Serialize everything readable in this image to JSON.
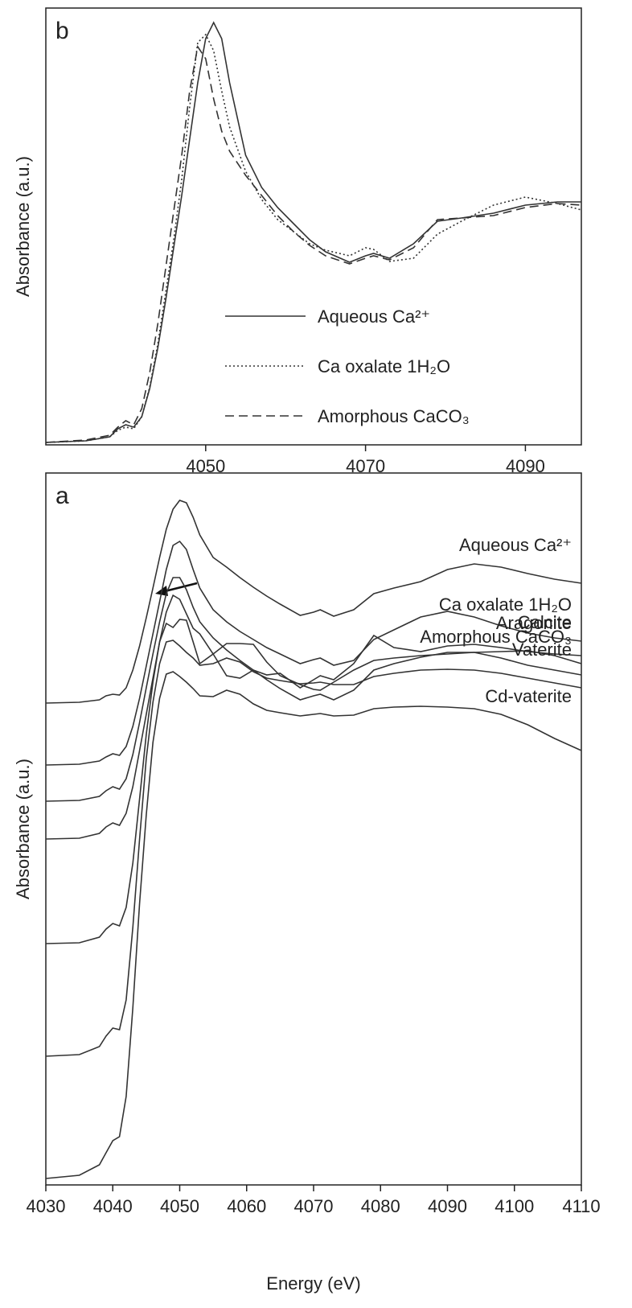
{
  "chart_data": [
    {
      "type": "line",
      "panel_label": "b",
      "ylabel": "Absorbance (a.u.)",
      "x": [
        4030,
        4035,
        4038,
        4039,
        4040,
        4041,
        4042,
        4043,
        4044,
        4045,
        4046,
        4047,
        4048,
        4049,
        4050,
        4051,
        4052,
        4053,
        4055,
        4057,
        4059,
        4061,
        4063,
        4065,
        4068,
        4070,
        4071,
        4073,
        4076,
        4079,
        4082,
        4086,
        4090,
        4094,
        4097
      ],
      "series": [
        {
          "name": "Aqueous Ca²⁺",
          "color": "#333333",
          "line_style": "solid",
          "values": [
            3,
            5,
            10,
            20,
            25,
            22,
            35,
            70,
            120,
            180,
            245,
            310,
            380,
            450,
            505,
            525,
            505,
            450,
            360,
            320,
            295,
            275,
            255,
            240,
            227,
            235,
            238,
            232,
            250,
            278,
            282,
            288,
            298,
            302,
            302
          ]
        },
        {
          "name": "Ca oxalate 1H₂O",
          "color": "#333333",
          "line_style": "dotted",
          "values": [
            3,
            5,
            10,
            18,
            22,
            20,
            35,
            72,
            125,
            190,
            255,
            330,
            420,
            500,
            510,
            490,
            440,
            395,
            340,
            305,
            280,
            265,
            250,
            242,
            235,
            245,
            243,
            228,
            232,
            262,
            278,
            298,
            308,
            300,
            292
          ]
        },
        {
          "name": "Amorphous CaCO₃",
          "color": "#333333",
          "line_style": "dashed",
          "values": [
            3,
            6,
            12,
            22,
            30,
            25,
            45,
            90,
            150,
            220,
            290,
            360,
            440,
            495,
            480,
            430,
            390,
            365,
            335,
            310,
            285,
            265,
            248,
            235,
            225,
            232,
            235,
            230,
            245,
            280,
            282,
            285,
            295,
            300,
            298
          ]
        }
      ],
      "xlim": [
        4030,
        4097
      ],
      "ylim": [
        0,
        543
      ],
      "xticks": [
        4050,
        4070,
        4090
      ],
      "legend": "lower center"
    },
    {
      "type": "line",
      "panel_label": "a",
      "ylabel": "Absorbance (a.u.)",
      "xlabel": "Energy (eV)",
      "x": [
        4030,
        4035,
        4038,
        4039,
        4040,
        4041,
        4042,
        4043,
        4044,
        4045,
        4046,
        4047,
        4048,
        4049,
        4050,
        4051,
        4052,
        4053,
        4055,
        4057,
        4059,
        4061,
        4063,
        4065,
        4068,
        4070,
        4071,
        4073,
        4076,
        4079,
        4082,
        4086,
        4090,
        4094,
        4098,
        4102,
        4106,
        4110
      ],
      "series": [
        {
          "name": "Aqueous Ca²⁺",
          "color": "#333333",
          "line_style": "solid",
          "values": [
            599,
            600,
            603,
            608,
            610,
            609,
            618,
            640,
            670,
            705,
            742,
            780,
            815,
            840,
            851,
            848,
            830,
            808,
            780,
            768,
            755,
            743,
            732,
            722,
            708,
            712,
            715,
            707,
            715,
            735,
            742,
            750,
            765,
            772,
            768,
            760,
            753,
            748
          ]
        },
        {
          "name": "Ca oxalate 1H₂O",
          "color": "#333333",
          "line_style": "solid",
          "values": [
            522,
            523,
            527,
            532,
            536,
            534,
            545,
            570,
            605,
            645,
            685,
            725,
            765,
            795,
            800,
            790,
            765,
            742,
            715,
            700,
            688,
            678,
            668,
            660,
            648,
            653,
            655,
            646,
            652,
            678,
            690,
            706,
            713,
            706,
            695,
            686,
            680,
            676
          ]
        },
        {
          "name": "Amorphous CaCO₃",
          "color": "#333333",
          "line_style": "solid",
          "values": [
            477,
            478,
            483,
            490,
            495,
            492,
            505,
            535,
            575,
            618,
            660,
            700,
            735,
            755,
            755,
            740,
            718,
            700,
            680,
            665,
            652,
            640,
            628,
            617,
            603,
            608,
            610,
            603,
            615,
            640,
            648,
            656,
            662,
            662,
            655,
            646,
            640,
            634
          ]
        },
        {
          "name": "Aragonite",
          "color": "#333333",
          "line_style": "solid",
          "values": [
            430,
            431,
            437,
            445,
            450,
            447,
            462,
            495,
            540,
            585,
            630,
            675,
            712,
            733,
            728,
            710,
            692,
            685,
            660,
            633,
            630,
            640,
            634,
            636,
            618,
            628,
            633,
            628,
            648,
            683,
            668,
            663,
            670,
            672,
            668,
            663,
            660,
            658
          ]
        },
        {
          "name": "Calcite",
          "color": "#333333",
          "line_style": "solid",
          "values": [
            300,
            301,
            308,
            318,
            325,
            322,
            345,
            400,
            480,
            560,
            625,
            675,
            698,
            693,
            703,
            702,
            675,
            648,
            660,
            673,
            673,
            672,
            650,
            633,
            622,
            616,
            615,
            625,
            640,
            652,
            655,
            658,
            660,
            662,
            663,
            664,
            658,
            648
          ]
        },
        {
          "name": "Vaterite",
          "color": "#333333",
          "line_style": "solid",
          "values": [
            160,
            162,
            172,
            185,
            195,
            193,
            230,
            320,
            430,
            530,
            600,
            648,
            675,
            677,
            670,
            662,
            655,
            646,
            648,
            655,
            650,
            638,
            630,
            627,
            623,
            624,
            625,
            622,
            622,
            632,
            636,
            640,
            641,
            640,
            636,
            630,
            624,
            618
          ]
        },
        {
          "name": "Cd-vaterite",
          "color": "#333333",
          "line_style": "solid",
          "values": [
            8,
            12,
            25,
            40,
            55,
            60,
            110,
            220,
            350,
            460,
            550,
            605,
            635,
            638,
            632,
            625,
            617,
            608,
            607,
            615,
            610,
            598,
            590,
            587,
            583,
            585,
            586,
            583,
            584,
            592,
            594,
            595,
            594,
            592,
            585,
            572,
            555,
            540
          ]
        }
      ],
      "xlim": [
        4030,
        4110
      ],
      "ylim": [
        0,
        885
      ],
      "xticks": [
        4030,
        4040,
        4050,
        4060,
        4070,
        4080,
        4090,
        4100,
        4110
      ],
      "legend": "inline"
    }
  ]
}
